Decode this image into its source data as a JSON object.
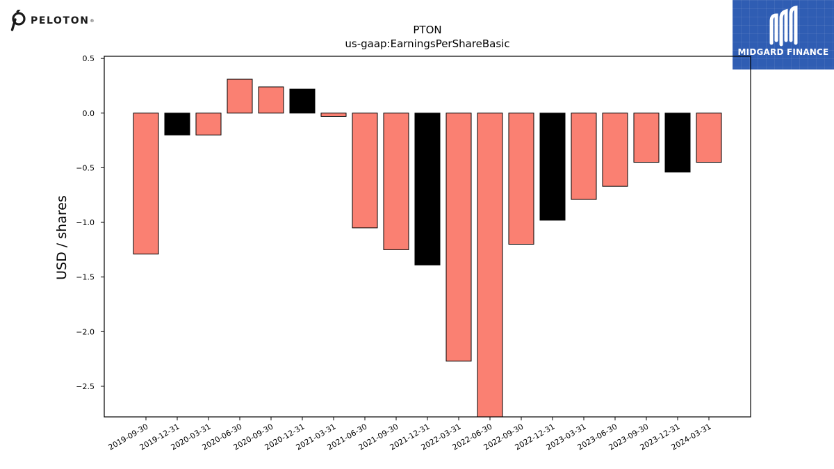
{
  "brand": {
    "logo_text": "PELOTON",
    "logo_icon": "peloton-p-icon",
    "partner_logo_text": "MIDGARD FINANCE",
    "partner_logo_icon": "midgard-m-icon",
    "partner_bg": "#2f5db3"
  },
  "chart_data": {
    "type": "bar",
    "title": "PTON",
    "subtitle": "us-gaap:EarningsPerShareBasic",
    "xlabel": "",
    "ylabel": "USD / shares",
    "ylim": [
      -2.78,
      0.52
    ],
    "yticks": [
      0.5,
      0.0,
      -0.5,
      -1.0,
      -1.5,
      -2.0,
      -2.5
    ],
    "ytick_labels": [
      "0.5",
      "0.0",
      "−0.5",
      "−1.0",
      "−1.5",
      "−2.0",
      "−2.5"
    ],
    "grid": false,
    "legend": "none",
    "colors": {
      "default": "#fa8072",
      "highlight": "#000000",
      "edge": "#000000"
    },
    "categories": [
      "2019-09-30",
      "2019-12-31",
      "2020-03-31",
      "2020-06-30",
      "2020-09-30",
      "2020-12-31",
      "2021-03-31",
      "2021-06-30",
      "2021-09-30",
      "2021-12-31",
      "2022-03-31",
      "2022-06-30",
      "2022-09-30",
      "2022-12-31",
      "2023-03-31",
      "2023-06-30",
      "2023-09-30",
      "2023-12-31",
      "2024-03-31"
    ],
    "values": [
      -1.29,
      -0.2,
      -0.2,
      0.31,
      0.24,
      0.22,
      -0.03,
      -1.05,
      -1.25,
      -1.39,
      -2.27,
      -2.9,
      -1.2,
      -0.98,
      -0.79,
      -0.67,
      -0.45,
      -0.54,
      -0.45
    ],
    "highlighted": [
      false,
      true,
      false,
      false,
      false,
      true,
      false,
      false,
      false,
      true,
      false,
      false,
      false,
      true,
      false,
      false,
      false,
      true,
      false
    ]
  }
}
